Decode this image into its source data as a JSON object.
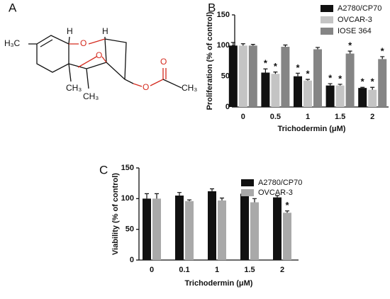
{
  "panels": [
    "A",
    "B",
    "C"
  ],
  "structure": {
    "atoms": [
      "H₃C",
      "H",
      "O",
      "H",
      "O",
      "CH₃",
      "CH₃",
      "O",
      "O",
      "CH₃"
    ]
  },
  "chart_data": [
    {
      "type": "bar",
      "ylabel": "Proliferation (% of control)",
      "xlabel": "Trichodermin (μM)",
      "categories": [
        "0",
        "0.5",
        "1",
        "1.5",
        "2"
      ],
      "ylim": [
        0,
        150
      ],
      "yticks": [
        0,
        50,
        100,
        150
      ],
      "series": [
        {
          "name": "A2780/CP70",
          "color": "#111111",
          "values": [
            100,
            56,
            50,
            35,
            31
          ],
          "errors": [
            5,
            6,
            5,
            3,
            1
          ],
          "markers": [
            null,
            "*",
            "*",
            "*",
            "*"
          ]
        },
        {
          "name": "OVCAR-3",
          "color": "#c4c4c4",
          "values": [
            100,
            54,
            43,
            35,
            28
          ],
          "errors": [
            3,
            3,
            2,
            2,
            4
          ],
          "markers": [
            null,
            "*",
            "*",
            "*",
            "*"
          ]
        },
        {
          "name": "IOSE 364",
          "color": "#858585",
          "values": [
            100,
            98,
            94,
            87,
            78
          ],
          "errors": [
            2,
            3,
            3,
            4,
            4
          ],
          "markers": [
            null,
            null,
            null,
            "*",
            "*"
          ]
        }
      ]
    },
    {
      "type": "bar",
      "ylabel": "Viability (% of control)",
      "xlabel": "Trichodermin (μM)",
      "categories": [
        "0",
        "0.1",
        "1",
        "1.5",
        "2"
      ],
      "ylim": [
        0,
        150
      ],
      "yticks": [
        0,
        50,
        100,
        150
      ],
      "series": [
        {
          "name": "A2780/CP70",
          "color": "#111111",
          "values": [
            100,
            105,
            112,
            108,
            102
          ],
          "errors": [
            8,
            5,
            4,
            4,
            3
          ],
          "markers": [
            null,
            null,
            null,
            null,
            null
          ]
        },
        {
          "name": "OVCAR-3",
          "color": "#a9a9a9",
          "values": [
            100,
            96,
            97,
            94,
            77
          ],
          "errors": [
            8,
            2,
            4,
            6,
            3
          ],
          "markers": [
            null,
            null,
            null,
            null,
            "*"
          ]
        }
      ]
    }
  ]
}
